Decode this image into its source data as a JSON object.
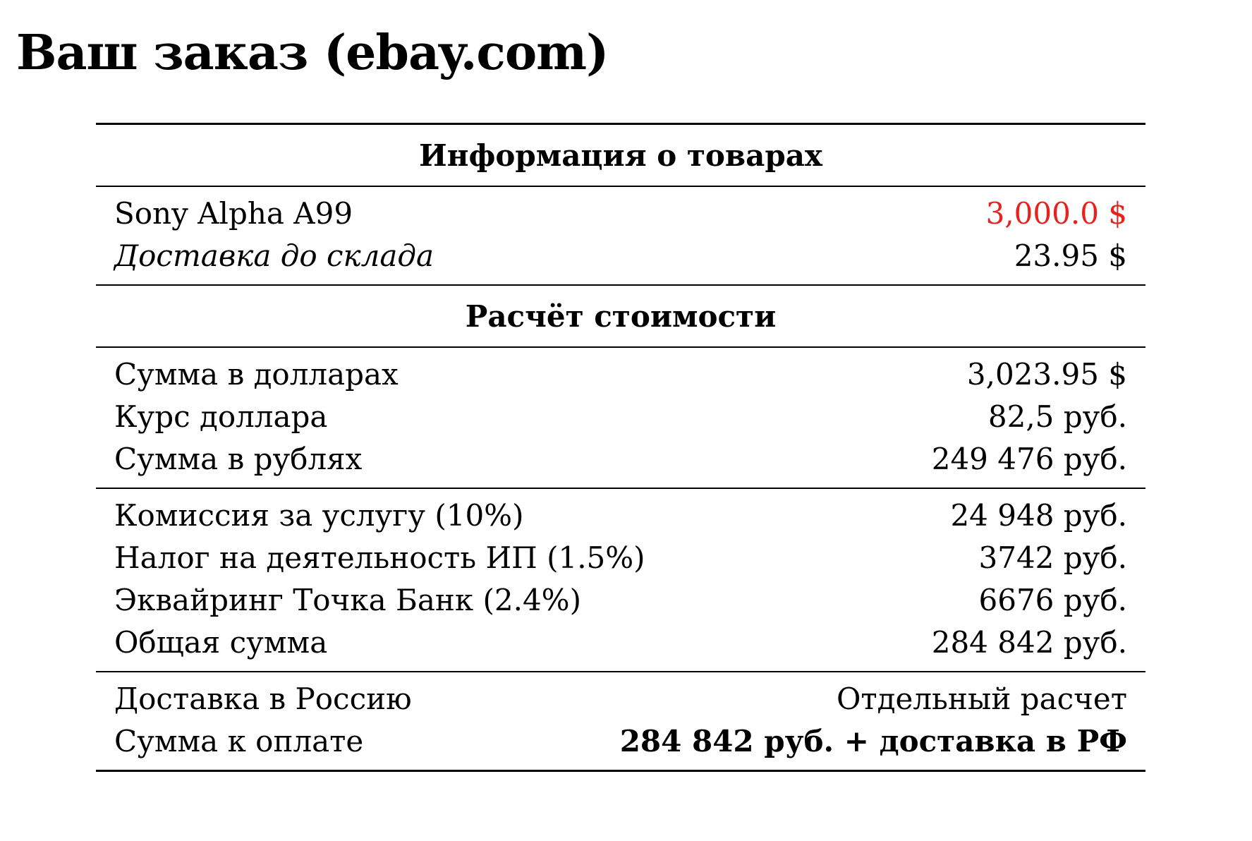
{
  "title": "Ваш заказ (ebay.com)",
  "colors": {
    "highlight_price": "#e8211c",
    "text": "#000000",
    "background": "#ffffff"
  },
  "sections": {
    "products": {
      "heading": "Информация о товарах",
      "rows": [
        {
          "label": "Sony Alpha A99",
          "value": "3,000.0 $"
        },
        {
          "label": "Доставка до склада",
          "value": "23.95 $"
        }
      ]
    },
    "calculation": {
      "heading": "Расчёт стоимости",
      "rows": [
        {
          "label": "Сумма в долларах",
          "value": "3,023.95 $"
        },
        {
          "label": "Курс доллара",
          "value": "82,5 руб."
        },
        {
          "label": "Сумма в рублях",
          "value": "249 476 руб."
        }
      ]
    },
    "fees": {
      "rows": [
        {
          "label": "Комиссия за услугу (10%)",
          "value": "24 948 руб."
        },
        {
          "label": "Налог на деятельность ИП (1.5%)",
          "value": "3742 руб."
        },
        {
          "label": "Эквайринг Точка Банк (2.4%)",
          "value": "6676 руб."
        },
        {
          "label": "Общая сумма",
          "value": "284 842 руб."
        }
      ]
    },
    "final": {
      "rows": [
        {
          "label": "Доставка в Россию",
          "value": "Отдельный расчет"
        },
        {
          "label": "Сумма к оплате",
          "value": "284 842 руб. + доставка в РФ"
        }
      ]
    }
  }
}
